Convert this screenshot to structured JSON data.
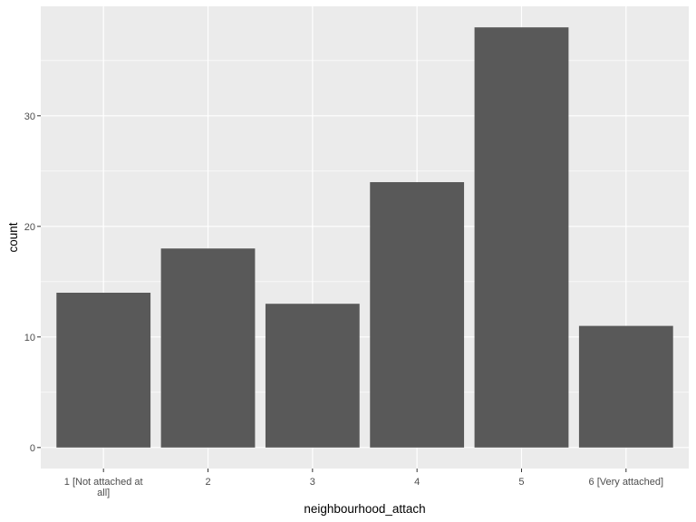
{
  "chart_data": {
    "type": "bar",
    "categories": [
      "1 [Not attached at all]",
      "2",
      "3",
      "4",
      "5",
      "6 [Very attached]"
    ],
    "category_label_lines": [
      [
        "1 [Not attached at",
        "all]"
      ],
      [
        "2"
      ],
      [
        "3"
      ],
      [
        "4"
      ],
      [
        "5"
      ],
      [
        "6 [Very attached]"
      ]
    ],
    "values": [
      14,
      18,
      13,
      24,
      38,
      11
    ],
    "xlabel": "neighbourhood_attach",
    "ylabel": "count",
    "ylim": [
      -1.9,
      39.9
    ],
    "yticks": [
      0,
      10,
      20,
      30
    ],
    "yminor": [
      5,
      15,
      25,
      35
    ],
    "grid": true,
    "colors": {
      "panel": "#ebebeb",
      "grid": "#ffffff",
      "bar": "#595959",
      "tick_text": "#4d4d4d",
      "tick_mark": "#333333"
    }
  }
}
